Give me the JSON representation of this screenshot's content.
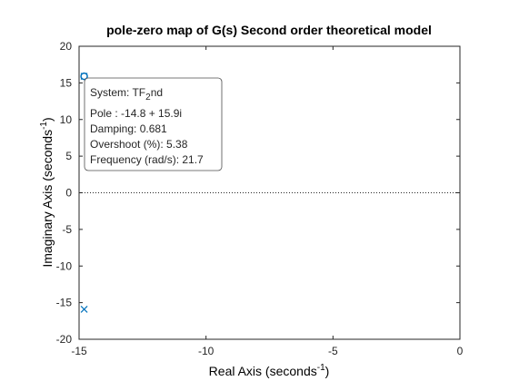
{
  "chart_data": {
    "type": "scatter",
    "title": "pole-zero map of G(s) Second order theoretical model",
    "xlabel": {
      "text": "Real Axis (seconds",
      "sup": "-1",
      "tail": ")"
    },
    "ylabel": {
      "text": "Imaginary Axis (seconds",
      "sup": "-1",
      "tail": ")"
    },
    "xlim": [
      -15,
      0
    ],
    "ylim": [
      -20,
      20
    ],
    "xticks": [
      -15,
      -10,
      -5,
      0
    ],
    "yticks": [
      -20,
      -15,
      -10,
      -5,
      0,
      5,
      10,
      15,
      20
    ],
    "xticklabels": [
      "-15",
      "-10",
      "-5",
      "0"
    ],
    "yticklabels": [
      "-20",
      "-15",
      "-10",
      "-5",
      "0",
      "5",
      "10",
      "15",
      "20"
    ],
    "reference_line": {
      "y": 0,
      "style": "dotted"
    },
    "series": [
      {
        "marker": "x",
        "color": "#0072bd",
        "points": [
          {
            "x": -14.8,
            "y": 15.9
          },
          {
            "x": -14.8,
            "y": -15.9
          }
        ]
      }
    ],
    "datatip": {
      "x": -14.8,
      "y": 15.9,
      "system_label": "System: TF",
      "system_sub": "2",
      "system_tail": "nd",
      "pole": "Pole : -14.8 + 15.9i",
      "damping": "Damping: 0.681",
      "overshoot": "Overshoot (%): 5.38",
      "frequency": "Frequency (rad/s): 21.7"
    }
  }
}
